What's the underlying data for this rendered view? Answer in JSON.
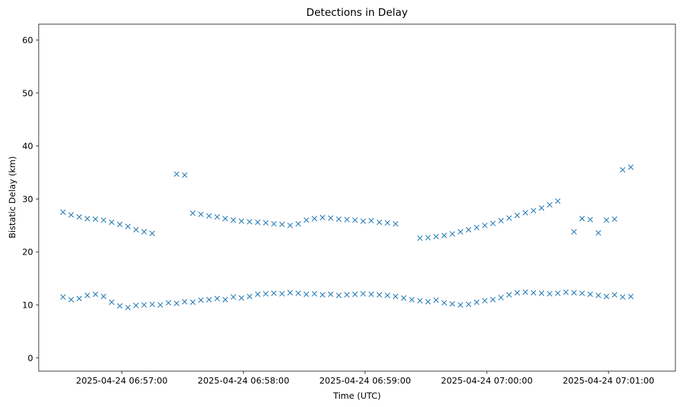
{
  "chart_data": {
    "type": "scatter",
    "title": "Detections in Delay",
    "xlabel": "Time (UTC)",
    "ylabel": "Bistatic Delay (km)",
    "marker": "x",
    "color": "#1f77b4",
    "grid": false,
    "x_is_time": true,
    "xlim": [
      "2025-04-24 06:56:19",
      "2025-04-24 07:01:33"
    ],
    "ylim": [
      -2.5,
      63
    ],
    "xticks": [
      {
        "t": "2025-04-24 06:57:00",
        "label": "2025-04-24 06:57:00"
      },
      {
        "t": "2025-04-24 06:58:00",
        "label": "2025-04-24 06:58:00"
      },
      {
        "t": "2025-04-24 06:59:00",
        "label": "2025-04-24 06:59:00"
      },
      {
        "t": "2025-04-24 07:00:00",
        "label": "2025-04-24 07:00:00"
      },
      {
        "t": "2025-04-24 07:01:00",
        "label": "2025-04-24 07:01:00"
      }
    ],
    "yticks": [
      0,
      10,
      20,
      30,
      40,
      50,
      60
    ],
    "track_points": [
      [
        "2025-04-24 06:56:31",
        11.5
      ],
      [
        "2025-04-24 06:56:35",
        11.0
      ],
      [
        "2025-04-24 06:56:39",
        11.2
      ],
      [
        "2025-04-24 06:56:43",
        11.8
      ],
      [
        "2025-04-24 06:56:47",
        12.0
      ],
      [
        "2025-04-24 06:56:51",
        11.6
      ],
      [
        "2025-04-24 06:56:55",
        10.5
      ],
      [
        "2025-04-24 06:56:59",
        9.8
      ],
      [
        "2025-04-24 06:57:03",
        9.5
      ],
      [
        "2025-04-24 06:57:07",
        9.9
      ],
      [
        "2025-04-24 06:57:11",
        10.0
      ],
      [
        "2025-04-24 06:57:15",
        10.1
      ],
      [
        "2025-04-24 06:57:19",
        10.0
      ],
      [
        "2025-04-24 06:57:23",
        10.4
      ],
      [
        "2025-04-24 06:57:27",
        10.3
      ],
      [
        "2025-04-24 06:57:31",
        10.6
      ],
      [
        "2025-04-24 06:57:35",
        10.5
      ],
      [
        "2025-04-24 06:57:39",
        10.9
      ],
      [
        "2025-04-24 06:57:43",
        11.0
      ],
      [
        "2025-04-24 06:57:47",
        11.2
      ],
      [
        "2025-04-24 06:57:51",
        11.0
      ],
      [
        "2025-04-24 06:57:55",
        11.5
      ],
      [
        "2025-04-24 06:57:59",
        11.3
      ],
      [
        "2025-04-24 06:58:03",
        11.6
      ],
      [
        "2025-04-24 06:58:07",
        12.0
      ],
      [
        "2025-04-24 06:58:11",
        12.1
      ],
      [
        "2025-04-24 06:58:15",
        12.2
      ],
      [
        "2025-04-24 06:58:19",
        12.1
      ],
      [
        "2025-04-24 06:58:23",
        12.3
      ],
      [
        "2025-04-24 06:58:27",
        12.2
      ],
      [
        "2025-04-24 06:58:31",
        12.0
      ],
      [
        "2025-04-24 06:58:35",
        12.1
      ],
      [
        "2025-04-24 06:58:39",
        11.9
      ],
      [
        "2025-04-24 06:58:43",
        12.0
      ],
      [
        "2025-04-24 06:58:47",
        11.8
      ],
      [
        "2025-04-24 06:58:51",
        11.9
      ],
      [
        "2025-04-24 06:58:55",
        12.0
      ],
      [
        "2025-04-24 06:58:59",
        12.1
      ],
      [
        "2025-04-24 06:59:03",
        12.0
      ],
      [
        "2025-04-24 06:59:07",
        11.9
      ],
      [
        "2025-04-24 06:59:11",
        11.8
      ],
      [
        "2025-04-24 06:59:15",
        11.6
      ],
      [
        "2025-04-24 06:59:19",
        11.3
      ],
      [
        "2025-04-24 06:59:23",
        11.0
      ],
      [
        "2025-04-24 06:59:27",
        10.8
      ],
      [
        "2025-04-24 06:59:31",
        10.6
      ],
      [
        "2025-04-24 06:59:35",
        10.9
      ],
      [
        "2025-04-24 06:59:39",
        10.4
      ],
      [
        "2025-04-24 06:59:43",
        10.2
      ],
      [
        "2025-04-24 06:59:47",
        10.0
      ],
      [
        "2025-04-24 06:59:51",
        10.1
      ],
      [
        "2025-04-24 06:59:55",
        10.5
      ],
      [
        "2025-04-24 06:59:59",
        10.8
      ],
      [
        "2025-04-24 07:00:03",
        11.0
      ],
      [
        "2025-04-24 07:00:07",
        11.4
      ],
      [
        "2025-04-24 07:00:11",
        11.9
      ],
      [
        "2025-04-24 07:00:15",
        12.3
      ],
      [
        "2025-04-24 07:00:19",
        12.4
      ],
      [
        "2025-04-24 07:00:23",
        12.3
      ],
      [
        "2025-04-24 07:00:27",
        12.2
      ],
      [
        "2025-04-24 07:00:31",
        12.1
      ],
      [
        "2025-04-24 07:00:35",
        12.2
      ],
      [
        "2025-04-24 07:00:39",
        12.4
      ],
      [
        "2025-04-24 07:00:43",
        12.3
      ],
      [
        "2025-04-24 07:00:47",
        12.2
      ],
      [
        "2025-04-24 07:00:51",
        12.0
      ],
      [
        "2025-04-24 07:00:55",
        11.8
      ],
      [
        "2025-04-24 07:00:59",
        11.6
      ],
      [
        "2025-04-24 07:01:03",
        11.9
      ],
      [
        "2025-04-24 07:01:07",
        11.5
      ],
      [
        "2025-04-24 07:01:11",
        11.6
      ],
      [
        "2025-04-24 06:56:31",
        27.5
      ],
      [
        "2025-04-24 06:56:35",
        27.0
      ],
      [
        "2025-04-24 06:56:39",
        26.6
      ],
      [
        "2025-04-24 06:56:43",
        26.3
      ],
      [
        "2025-04-24 06:56:47",
        26.2
      ],
      [
        "2025-04-24 06:56:51",
        26.0
      ],
      [
        "2025-04-24 06:56:55",
        25.6
      ],
      [
        "2025-04-24 06:56:59",
        25.2
      ],
      [
        "2025-04-24 06:57:03",
        24.8
      ],
      [
        "2025-04-24 06:57:07",
        24.2
      ],
      [
        "2025-04-24 06:57:11",
        23.8
      ],
      [
        "2025-04-24 06:57:15",
        23.5
      ],
      [
        "2025-04-24 06:57:27",
        34.7
      ],
      [
        "2025-04-24 06:57:31",
        34.5
      ],
      [
        "2025-04-24 06:57:35",
        27.3
      ],
      [
        "2025-04-24 06:57:39",
        27.1
      ],
      [
        "2025-04-24 06:57:43",
        26.8
      ],
      [
        "2025-04-24 06:57:47",
        26.6
      ],
      [
        "2025-04-24 06:57:51",
        26.3
      ],
      [
        "2025-04-24 06:57:55",
        26.0
      ],
      [
        "2025-04-24 06:57:59",
        25.8
      ],
      [
        "2025-04-24 06:58:03",
        25.7
      ],
      [
        "2025-04-24 06:58:07",
        25.6
      ],
      [
        "2025-04-24 06:58:11",
        25.5
      ],
      [
        "2025-04-24 06:58:15",
        25.3
      ],
      [
        "2025-04-24 06:58:19",
        25.2
      ],
      [
        "2025-04-24 06:58:23",
        25.0
      ],
      [
        "2025-04-24 06:58:27",
        25.3
      ],
      [
        "2025-04-24 06:58:31",
        26.0
      ],
      [
        "2025-04-24 06:58:35",
        26.3
      ],
      [
        "2025-04-24 06:58:39",
        26.5
      ],
      [
        "2025-04-24 06:58:43",
        26.4
      ],
      [
        "2025-04-24 06:58:47",
        26.2
      ],
      [
        "2025-04-24 06:58:51",
        26.1
      ],
      [
        "2025-04-24 06:58:55",
        26.0
      ],
      [
        "2025-04-24 06:58:59",
        25.8
      ],
      [
        "2025-04-24 06:59:03",
        25.9
      ],
      [
        "2025-04-24 06:59:07",
        25.6
      ],
      [
        "2025-04-24 06:59:11",
        25.5
      ],
      [
        "2025-04-24 06:59:15",
        25.3
      ],
      [
        "2025-04-24 06:59:27",
        22.6
      ],
      [
        "2025-04-24 06:59:31",
        22.7
      ],
      [
        "2025-04-24 06:59:35",
        22.9
      ],
      [
        "2025-04-24 06:59:39",
        23.1
      ],
      [
        "2025-04-24 06:59:43",
        23.4
      ],
      [
        "2025-04-24 06:59:47",
        23.8
      ],
      [
        "2025-04-24 06:59:51",
        24.2
      ],
      [
        "2025-04-24 06:59:55",
        24.6
      ],
      [
        "2025-04-24 06:59:59",
        25.0
      ],
      [
        "2025-04-24 07:00:03",
        25.4
      ],
      [
        "2025-04-24 07:00:07",
        25.9
      ],
      [
        "2025-04-24 07:00:11",
        26.4
      ],
      [
        "2025-04-24 07:00:15",
        26.9
      ],
      [
        "2025-04-24 07:00:19",
        27.4
      ],
      [
        "2025-04-24 07:00:23",
        27.8
      ],
      [
        "2025-04-24 07:00:27",
        28.3
      ],
      [
        "2025-04-24 07:00:31",
        28.9
      ],
      [
        "2025-04-24 07:00:35",
        29.6
      ],
      [
        "2025-04-24 07:00:43",
        23.8
      ],
      [
        "2025-04-24 07:00:47",
        26.3
      ],
      [
        "2025-04-24 07:00:51",
        26.1
      ],
      [
        "2025-04-24 07:00:55",
        23.6
      ],
      [
        "2025-04-24 07:00:59",
        26.0
      ],
      [
        "2025-04-24 07:01:03",
        26.2
      ],
      [
        "2025-04-24 07:01:07",
        35.5
      ],
      [
        "2025-04-24 07:01:11",
        36.0
      ]
    ]
  }
}
